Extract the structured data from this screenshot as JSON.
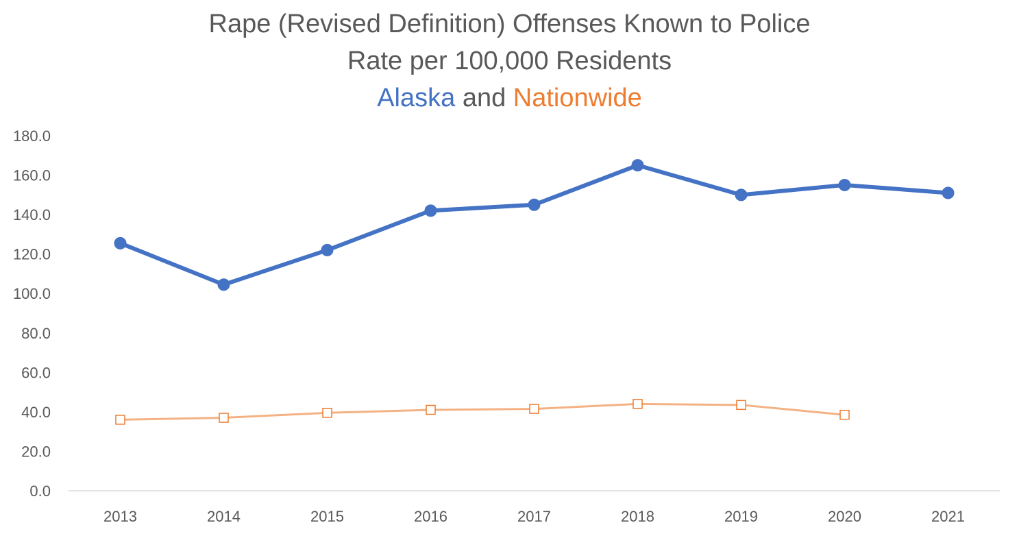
{
  "chart_data": {
    "type": "line",
    "title_lines": {
      "line1": "Rape (Revised Definition) Offenses Known to Police",
      "line2": "Rate per 100,000 Residents",
      "line3_part1": "Alaska",
      "line3_part2": " and ",
      "line3_part3": "Nationwide"
    },
    "x": [
      "2013",
      "2014",
      "2015",
      "2016",
      "2017",
      "2018",
      "2019",
      "2020",
      "2021"
    ],
    "y_ticks": [
      "0.0",
      "20.0",
      "40.0",
      "60.0",
      "80.0",
      "100.0",
      "120.0",
      "140.0",
      "160.0",
      "180.0"
    ],
    "ylim": [
      0,
      180
    ],
    "grid": false,
    "legend": "none",
    "series": [
      {
        "name": "Alaska",
        "color": "#4472C4",
        "marker": "circle",
        "values": [
          125.5,
          104.5,
          122.0,
          142.0,
          145.0,
          165.0,
          150.0,
          155.0,
          151.0
        ]
      },
      {
        "name": "Nationwide",
        "color": "#F4B183",
        "marker": "open-square",
        "values": [
          36.0,
          37.0,
          39.5,
          41.0,
          41.5,
          44.0,
          43.5,
          38.5,
          null
        ]
      }
    ]
  },
  "colors": {
    "title_text": "#595959",
    "alaska": "#4472C4",
    "nationwide_label": "#ED7D31",
    "axis_text": "#595959",
    "axis_line": "#D9D9D9"
  }
}
